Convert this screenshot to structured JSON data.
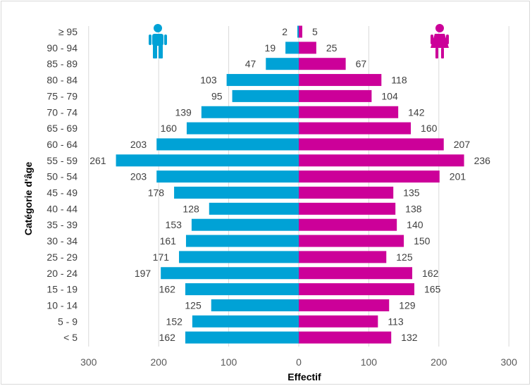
{
  "chart_data": {
    "type": "bar",
    "orientation": "horizontal",
    "layout": "population-pyramid",
    "xlabel": "Effectif",
    "ylabel": "Catégorie d'âge",
    "xlim": [
      -300,
      300
    ],
    "x_ticks": [
      {
        "value": -300,
        "label": "300"
      },
      {
        "value": -200,
        "label": "200"
      },
      {
        "value": -100,
        "label": "100"
      },
      {
        "value": 0,
        "label": "0"
      },
      {
        "value": 100,
        "label": "100"
      },
      {
        "value": 200,
        "label": "200"
      },
      {
        "value": 300,
        "label": "300"
      }
    ],
    "grid": "vertical",
    "categories": [
      "≥ 95",
      "90 - 94",
      "85 - 89",
      "80 - 84",
      "75 - 79",
      "70 - 74",
      "65 - 69",
      "60 - 64",
      "55 - 59",
      "50 - 54",
      "45 - 49",
      "40 - 44",
      "35 - 39",
      "30 - 34",
      "25 - 29",
      "20 - 24",
      "15 - 19",
      "10 - 14",
      "5 - 9",
      "< 5"
    ],
    "series": [
      {
        "side": "left",
        "icon": "male-person-icon",
        "color": "#00a2d6",
        "values": [
          2,
          19,
          47,
          103,
          95,
          139,
          160,
          203,
          261,
          203,
          178,
          128,
          153,
          161,
          171,
          197,
          162,
          125,
          152,
          162
        ]
      },
      {
        "side": "right",
        "icon": "female-person-icon",
        "color": "#cc0099",
        "values": [
          5,
          25,
          67,
          118,
          104,
          142,
          160,
          207,
          236,
          201,
          135,
          138,
          140,
          150,
          125,
          162,
          165,
          129,
          113,
          132
        ]
      }
    ]
  }
}
